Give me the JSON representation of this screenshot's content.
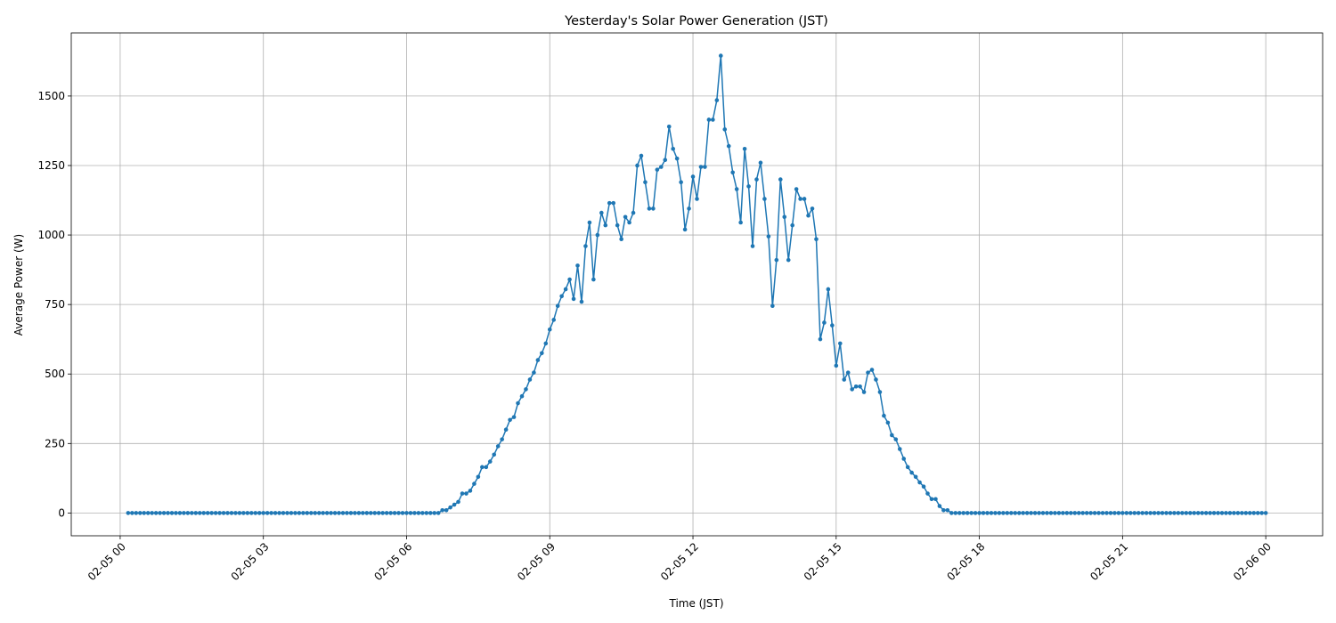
{
  "chart_data": {
    "type": "line",
    "title": "Yesterday's Solar Power Generation (JST)",
    "x_label": "Time (JST)",
    "y_label": "Average Power (W)",
    "color": "#1f77b4",
    "grid": true,
    "markers": true,
    "x": [
      10,
      15,
      20,
      25,
      30,
      35,
      40,
      45,
      50,
      55,
      60,
      65,
      70,
      75,
      80,
      85,
      90,
      95,
      100,
      105,
      110,
      115,
      120,
      125,
      130,
      135,
      140,
      145,
      150,
      155,
      160,
      165,
      170,
      175,
      180,
      185,
      190,
      195,
      200,
      205,
      210,
      215,
      220,
      225,
      230,
      235,
      240,
      245,
      250,
      255,
      260,
      265,
      270,
      275,
      280,
      285,
      290,
      295,
      300,
      305,
      310,
      315,
      320,
      325,
      330,
      335,
      340,
      345,
      350,
      355,
      360,
      365,
      370,
      375,
      380,
      385,
      390,
      395,
      400,
      405,
      410,
      415,
      420,
      425,
      430,
      435,
      440,
      445,
      450,
      455,
      460,
      465,
      470,
      475,
      480,
      485,
      490,
      495,
      500,
      505,
      510,
      515,
      520,
      525,
      530,
      535,
      540,
      545,
      550,
      555,
      560,
      565,
      570,
      575,
      580,
      585,
      590,
      595,
      600,
      605,
      610,
      615,
      620,
      625,
      630,
      635,
      640,
      645,
      650,
      655,
      660,
      665,
      670,
      675,
      680,
      685,
      690,
      695,
      700,
      705,
      710,
      715,
      720,
      725,
      730,
      735,
      740,
      745,
      750,
      755,
      760,
      765,
      770,
      775,
      780,
      785,
      790,
      795,
      800,
      805,
      810,
      815,
      820,
      825,
      830,
      835,
      840,
      845,
      850,
      855,
      860,
      865,
      870,
      875,
      880,
      885,
      890,
      895,
      900,
      905,
      910,
      915,
      920,
      925,
      930,
      935,
      940,
      945,
      950,
      955,
      960,
      965,
      970,
      975,
      980,
      985,
      990,
      995,
      1000,
      1005,
      1010,
      1015,
      1020,
      1025,
      1030,
      1035,
      1040,
      1045,
      1050,
      1055,
      1060,
      1065,
      1070,
      1075,
      1080,
      1085,
      1090,
      1095,
      1100,
      1105,
      1110,
      1115,
      1120,
      1125,
      1130,
      1135,
      1140,
      1145,
      1150,
      1155,
      1160,
      1165,
      1170,
      1175,
      1180,
      1185,
      1190,
      1195,
      1200,
      1205,
      1210,
      1215,
      1220,
      1225,
      1230,
      1235,
      1240,
      1245,
      1250,
      1255,
      1260,
      1265,
      1270,
      1275,
      1280,
      1285,
      1290,
      1295,
      1300,
      1305,
      1310,
      1315,
      1320,
      1325,
      1330,
      1335,
      1340,
      1345,
      1350,
      1355,
      1360,
      1365,
      1370,
      1375,
      1380,
      1385,
      1390,
      1395,
      1400,
      1405,
      1410,
      1415,
      1420,
      1425,
      1430,
      1435,
      1440
    ],
    "values": [
      0,
      0,
      0,
      0,
      0,
      0,
      0,
      0,
      0,
      0,
      0,
      0,
      0,
      0,
      0,
      0,
      0,
      0,
      0,
      0,
      0,
      0,
      0,
      0,
      0,
      0,
      0,
      0,
      0,
      0,
      0,
      0,
      0,
      0,
      0,
      0,
      0,
      0,
      0,
      0,
      0,
      0,
      0,
      0,
      0,
      0,
      0,
      0,
      0,
      0,
      0,
      0,
      0,
      0,
      0,
      0,
      0,
      0,
      0,
      0,
      0,
      0,
      0,
      0,
      0,
      0,
      0,
      0,
      0,
      0,
      0,
      0,
      0,
      0,
      0,
      0,
      0,
      0,
      0,
      10,
      10,
      20,
      30,
      40,
      70,
      70,
      80,
      105,
      130,
      165,
      165,
      185,
      210,
      240,
      265,
      300,
      335,
      345,
      395,
      420,
      445,
      480,
      505,
      550,
      575,
      610,
      660,
      695,
      745,
      780,
      805,
      840,
      770,
      890,
      760,
      960,
      1045,
      840,
      1000,
      1080,
      1035,
      1115,
      1115,
      1035,
      985,
      1065,
      1045,
      1080,
      1250,
      1285,
      1190,
      1095,
      1095,
      1235,
      1245,
      1270,
      1390,
      1310,
      1275,
      1190,
      1020,
      1095,
      1210,
      1130,
      1245,
      1245,
      1415,
      1415,
      1485,
      1645,
      1380,
      1320,
      1225,
      1165,
      1045,
      1310,
      1175,
      960,
      1200,
      1260,
      1130,
      995,
      745,
      910,
      1200,
      1065,
      910,
      1035,
      1165,
      1130,
      1130,
      1070,
      1095,
      985,
      625,
      685,
      805,
      675,
      530,
      610,
      480,
      505,
      445,
      455,
      455,
      435,
      505,
      515,
      480,
      435,
      350,
      325,
      280,
      265,
      230,
      195,
      165,
      145,
      130,
      110,
      95,
      70,
      50,
      50,
      25,
      10,
      10,
      0,
      0,
      0,
      0,
      0,
      0,
      0,
      0,
      0,
      0,
      0,
      0,
      0,
      0,
      0,
      0,
      0,
      0,
      0,
      0,
      0,
      0,
      0,
      0,
      0,
      0,
      0,
      0,
      0,
      0,
      0,
      0,
      0,
      0,
      0,
      0,
      0,
      0,
      0,
      0,
      0,
      0,
      0,
      0,
      0,
      0,
      0,
      0,
      0,
      0,
      0,
      0,
      0,
      0,
      0,
      0,
      0,
      0,
      0,
      0,
      0,
      0,
      0,
      0,
      0,
      0,
      0,
      0,
      0,
      0,
      0,
      0,
      0,
      0,
      0,
      0,
      0,
      0,
      0,
      0
    ],
    "xlim": [
      -61.5,
      1511.5
    ],
    "xticks": [
      {
        "value": 0,
        "label": "02-05 00"
      },
      {
        "value": 180,
        "label": "02-05 03"
      },
      {
        "value": 360,
        "label": "02-05 06"
      },
      {
        "value": 540,
        "label": "02-05 09"
      },
      {
        "value": 720,
        "label": "02-05 12"
      },
      {
        "value": 900,
        "label": "02-05 15"
      },
      {
        "value": 1080,
        "label": "02-05 18"
      },
      {
        "value": 1260,
        "label": "02-05 21"
      },
      {
        "value": 1440,
        "label": "02-06 00"
      }
    ],
    "ylim": [
      -82,
      1727
    ],
    "yticks": [
      0,
      250,
      500,
      750,
      1000,
      1250,
      1500
    ]
  }
}
